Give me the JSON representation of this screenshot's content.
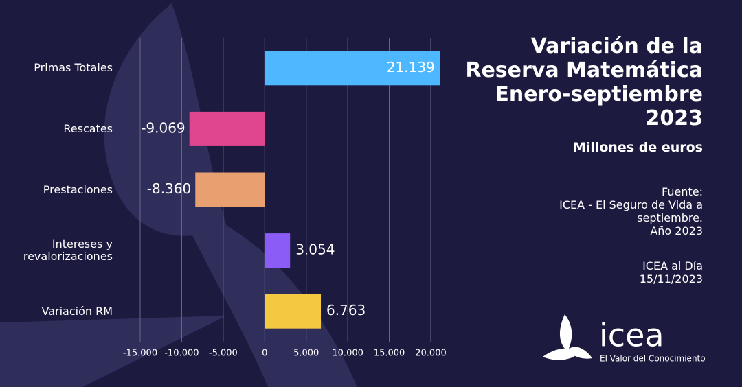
{
  "chart_data": {
    "type": "barh",
    "title": [
      "Variación de la",
      "Reserva Matemática",
      "Enero-septiembre",
      "2023"
    ],
    "subtitle": "Millones de euros",
    "categories": [
      "Primas Totales",
      "Rescates",
      "Prestaciones",
      "Intereses y revalorizaciones",
      "Variación RM"
    ],
    "values": [
      21139,
      -9069,
      -8360,
      3054,
      6763
    ],
    "value_labels": [
      "21.139",
      "-9.069",
      "-8.360",
      "3.054",
      "6.763"
    ],
    "colors": [
      "#4db8ff",
      "#e0468f",
      "#e8a070",
      "#8b5cf6",
      "#f5c842"
    ],
    "xlim": [
      -15000,
      20000
    ],
    "xticks": [
      {
        "value": -15000,
        "label": "-15.000"
      },
      {
        "value": -10000,
        "label": "-10.000"
      },
      {
        "value": -5000,
        "label": "-5.000"
      },
      0,
      {
        "value": 5000,
        "label": "5.000"
      },
      {
        "value": 10000,
        "label": "10.000"
      },
      {
        "value": 15000,
        "label": "15.000"
      },
      {
        "value": 20000,
        "label": "20.000"
      }
    ],
    "grid": true
  },
  "source": [
    "Fuente:",
    "ICEA - El Seguro de Vida a",
    "septiembre.",
    "Año 2023"
  ],
  "note": [
    "ICEA al Día",
    "15/11/2023"
  ],
  "logo": {
    "name": "icea",
    "tagline": "El Valor del Conocimiento"
  }
}
